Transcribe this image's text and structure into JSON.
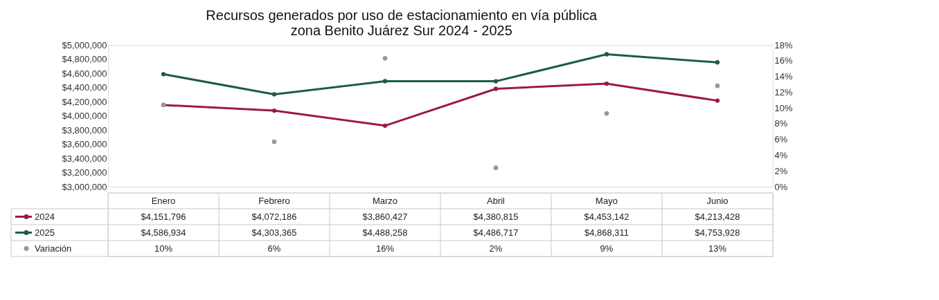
{
  "chart_data": {
    "type": "line",
    "title": "Recursos generados por uso de estacionamiento en vía pública\nzona  Benito Juárez Sur 2024 - 2025",
    "categories": [
      "Enero",
      "Febrero",
      "Marzo",
      "Abril",
      "Mayo",
      "Junio"
    ],
    "series": [
      {
        "name": "2024",
        "color": "#9b1b3e",
        "values": [
          4151796,
          4072186,
          3860427,
          4380815,
          4453142,
          4213428
        ],
        "value_labels": [
          "$4,151,796",
          "$4,072,186",
          "$3,860,427",
          "$4,380,815",
          "$4,453,142",
          "$4,213,428"
        ]
      },
      {
        "name": "2025",
        "color": "#1d5b47",
        "values": [
          4586934,
          4303365,
          4488258,
          4486717,
          4868311,
          4753928
        ],
        "value_labels": [
          "$4,586,934",
          "$4,303,365",
          "$4,488,258",
          "$4,486,717",
          "$4,868,311",
          "$4,753,928"
        ]
      },
      {
        "name": "Variación",
        "type": "scatter",
        "axis": "y2",
        "color": "#999999",
        "values": [
          10.4,
          5.7,
          16.3,
          2.4,
          9.3,
          12.8
        ],
        "value_labels": [
          "10%",
          "6%",
          "16%",
          "2%",
          "9%",
          "13%"
        ]
      }
    ],
    "ylim": [
      3000000,
      5000000
    ],
    "yticks": [
      {
        "value": 3000000,
        "label": "$3,000,000"
      },
      {
        "value": 3200000,
        "label": "$3,200,000"
      },
      {
        "value": 3400000,
        "label": "$3,400,000"
      },
      {
        "value": 3600000,
        "label": "$3,600,000"
      },
      {
        "value": 3800000,
        "label": "$3,800,000"
      },
      {
        "value": 4000000,
        "label": "$4,000,000"
      },
      {
        "value": 4200000,
        "label": "$4,200,000"
      },
      {
        "value": 4400000,
        "label": "$4,400,000"
      },
      {
        "value": 4600000,
        "label": "$4,600,000"
      },
      {
        "value": 4800000,
        "label": "$4,800,000"
      },
      {
        "value": 5000000,
        "label": "$5,000,000"
      }
    ],
    "y2lim": [
      0,
      18
    ],
    "y2ticks": [
      {
        "value": 0,
        "label": "0%"
      },
      {
        "value": 2,
        "label": "2%"
      },
      {
        "value": 4,
        "label": "4%"
      },
      {
        "value": 6,
        "label": "6%"
      },
      {
        "value": 8,
        "label": "8%"
      },
      {
        "value": 10,
        "label": "10%"
      },
      {
        "value": 12,
        "label": "12%"
      },
      {
        "value": 14,
        "label": "14%"
      },
      {
        "value": 16,
        "label": "16%"
      },
      {
        "value": 18,
        "label": "18%"
      }
    ],
    "marker": "circle",
    "line_style": "solid",
    "grid": false,
    "legend": "bottom"
  }
}
